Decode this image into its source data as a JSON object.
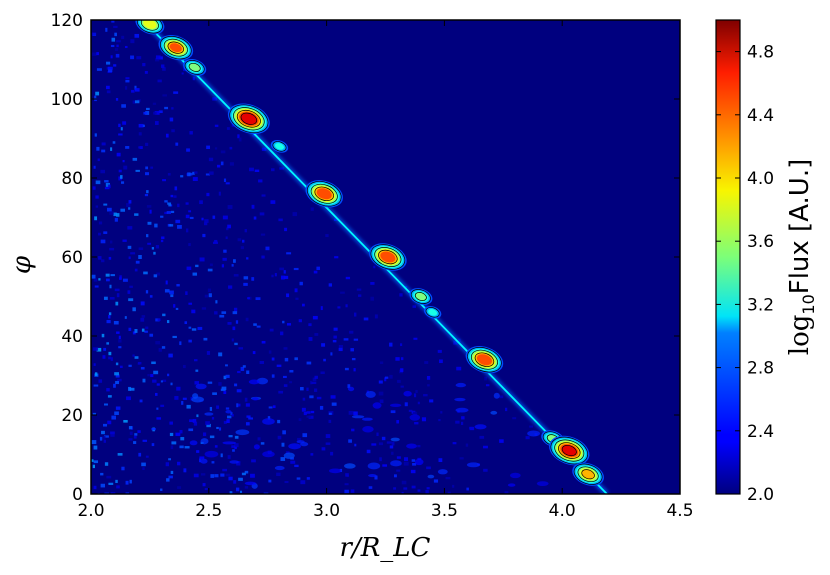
{
  "chart_data": {
    "type": "heatmap",
    "title": "",
    "xlabel": "r/R_LC",
    "ylabel": "φ",
    "xlim": [
      2.0,
      4.5
    ],
    "ylim": [
      0,
      120
    ],
    "x_ticks": [
      "2.0",
      "2.5",
      "3.0",
      "3.5",
      "4.0",
      "4.5"
    ],
    "y_ticks": [
      "0",
      "20",
      "40",
      "60",
      "80",
      "100",
      "120"
    ],
    "x_tick_values": [
      2.0,
      2.5,
      3.0,
      3.5,
      4.0,
      4.5
    ],
    "y_tick_values": [
      0,
      20,
      40,
      60,
      80,
      100,
      120
    ],
    "colorbar": {
      "label_prefix": "log",
      "label_sub": "10",
      "label_suffix": "Flux [A.U.]",
      "range": [
        2.0,
        5.0
      ],
      "ticks": [
        "2.0",
        "2.4",
        "2.8",
        "3.2",
        "3.6",
        "4.0",
        "4.4",
        "4.8"
      ],
      "tick_values": [
        2.0,
        2.4,
        2.8,
        3.2,
        3.6,
        4.0,
        4.4,
        4.8
      ],
      "colormap": "jet"
    },
    "ridge": {
      "x_start": 2.22,
      "y_start": 120,
      "x_end": 4.19,
      "y_end": 0
    },
    "hotspots": [
      {
        "x": 2.25,
        "y": 119,
        "level": 4.0
      },
      {
        "x": 2.36,
        "y": 113,
        "level": 4.4
      },
      {
        "x": 2.44,
        "y": 108,
        "level": 3.6
      },
      {
        "x": 2.67,
        "y": 95,
        "level": 4.9
      },
      {
        "x": 2.8,
        "y": 88,
        "level": 3.2
      },
      {
        "x": 2.99,
        "y": 76,
        "level": 4.6
      },
      {
        "x": 3.26,
        "y": 60,
        "level": 4.6
      },
      {
        "x": 3.4,
        "y": 50,
        "level": 3.6
      },
      {
        "x": 3.45,
        "y": 46,
        "level": 3.2
      },
      {
        "x": 3.67,
        "y": 34,
        "level": 4.6
      },
      {
        "x": 3.96,
        "y": 14,
        "level": 3.6
      },
      {
        "x": 4.03,
        "y": 11,
        "level": 4.8
      },
      {
        "x": 4.11,
        "y": 5,
        "level": 4.2
      }
    ],
    "background_level": 2.0
  }
}
